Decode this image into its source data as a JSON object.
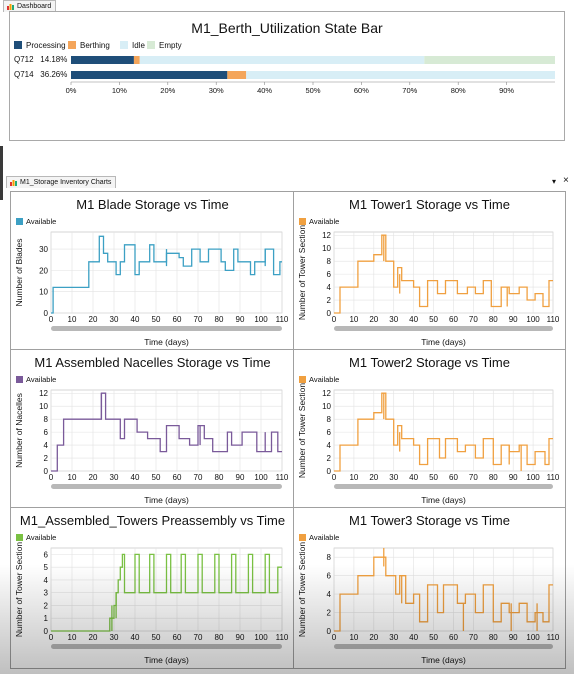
{
  "dashboard_tab": {
    "label": "Dashboard"
  },
  "storage_tab": {
    "label": "M1_Storage Inventory Charts"
  },
  "window_controls": {
    "dropdown": "▾",
    "close": "×"
  },
  "state_bar": {
    "title": "M1_Berth_Utilization State Bar",
    "legend": [
      {
        "label": "Processing",
        "color": "#1f4e79"
      },
      {
        "label": "Berthing",
        "color": "#f4a55a"
      },
      {
        "label": "Idle",
        "color": "#d8eef6"
      },
      {
        "label": "Empty",
        "color": "#d7ead5"
      }
    ],
    "rows": [
      {
        "name": "Q712",
        "pct": "14.18%",
        "processing": 13,
        "berthing": 1.2,
        "idle": 58.8,
        "empty": 27
      },
      {
        "name": "Q714",
        "pct": "36.26%",
        "processing": 32.3,
        "berthing": 3.9,
        "idle": 63.8,
        "empty": 0
      }
    ],
    "axis_ticks": [
      "0%",
      "10%",
      "20%",
      "30%",
      "40%",
      "50%",
      "60%",
      "70%",
      "80%",
      "90%"
    ]
  },
  "chart_data": [
    {
      "type": "line",
      "title": "M1 Blade Storage vs Time",
      "legend": "Available",
      "color": "#3ca0c4",
      "xlabel": "Time (days)",
      "ylabel": "Number of Blades",
      "xlim": [
        0,
        110
      ],
      "ylim": [
        0,
        38
      ],
      "yticks": [
        0,
        10,
        20,
        30
      ],
      "xticks": [
        0,
        10,
        20,
        30,
        40,
        50,
        60,
        70,
        80,
        90,
        100,
        110
      ],
      "x": [
        0,
        1,
        1,
        18,
        18,
        23,
        23,
        25,
        25,
        27,
        27,
        31,
        31,
        33,
        33,
        35,
        35,
        40,
        40,
        42,
        42,
        47,
        47,
        49,
        49,
        55,
        55,
        61,
        61,
        63,
        63,
        67,
        67,
        71,
        71,
        75,
        75,
        81,
        81,
        83,
        83,
        87,
        87,
        89,
        89,
        95,
        95,
        97,
        97,
        102,
        102,
        106,
        106,
        109,
        109,
        110
      ],
      "y": [
        0,
        0,
        12,
        12,
        24,
        24,
        36,
        36,
        28,
        28,
        24,
        24,
        18,
        18,
        24,
        24,
        32,
        32,
        18,
        18,
        24,
        24,
        32,
        32,
        24,
        24,
        28,
        28,
        26,
        26,
        22,
        22,
        30,
        30,
        24,
        24,
        30,
        30,
        24,
        24,
        20,
        20,
        30,
        30,
        24,
        24,
        18,
        18,
        24,
        24,
        30,
        30,
        18,
        18,
        24,
        24
      ],
      "spikes": [
        [
          55,
          22,
          30
        ],
        [
          102,
          22,
          30
        ]
      ]
    },
    {
      "type": "line",
      "title": "M1 Tower1 Storage vs Time",
      "legend": "Available",
      "color": "#f0a040",
      "xlabel": "Time (days)",
      "ylabel": "Number of Tower Section",
      "xlim": [
        0,
        110
      ],
      "ylim": [
        0,
        12.5
      ],
      "yticks": [
        0,
        2,
        4,
        6,
        8,
        10,
        12
      ],
      "xticks": [
        0,
        10,
        20,
        30,
        40,
        50,
        60,
        70,
        80,
        90,
        100,
        110
      ],
      "x": [
        0,
        3,
        3,
        12,
        12,
        20,
        20,
        24,
        24,
        26,
        26,
        30,
        30,
        32,
        32,
        34,
        34,
        40,
        40,
        43,
        43,
        47,
        47,
        52,
        52,
        56,
        56,
        62,
        62,
        67,
        67,
        71,
        71,
        75,
        75,
        79,
        79,
        84,
        84,
        88,
        88,
        93,
        93,
        97,
        97,
        101,
        101,
        105,
        105,
        108,
        108,
        110
      ],
      "y": [
        0,
        0,
        4,
        4,
        8,
        8,
        9,
        9,
        12,
        12,
        8,
        8,
        4,
        4,
        7,
        7,
        5,
        5,
        4,
        4,
        1,
        1,
        5,
        5,
        3,
        3,
        5,
        5,
        3,
        3,
        4,
        4,
        3,
        3,
        5,
        5,
        1,
        1,
        4,
        4,
        3,
        3,
        4,
        4,
        2,
        2,
        3,
        3,
        1,
        1,
        5,
        5
      ],
      "spikes": [
        [
          25,
          8,
          12
        ],
        [
          33,
          3,
          6
        ],
        [
          87,
          1,
          4
        ]
      ]
    },
    {
      "type": "line",
      "title": "M1 Assembled Nacelles Storage vs Time",
      "legend": "Available",
      "color": "#7a5a9a",
      "xlabel": "Time (days)",
      "ylabel": "Number of Nacelles",
      "xlim": [
        0,
        110
      ],
      "ylim": [
        0,
        12.5
      ],
      "yticks": [
        0,
        2,
        4,
        6,
        8,
        10,
        12
      ],
      "xticks": [
        0,
        10,
        20,
        30,
        40,
        50,
        60,
        70,
        80,
        90,
        100,
        110
      ],
      "x": [
        0,
        3,
        3,
        6,
        6,
        18,
        18,
        24,
        24,
        26,
        26,
        33,
        33,
        35,
        35,
        41,
        41,
        46,
        46,
        52,
        52,
        55,
        55,
        61,
        61,
        66,
        66,
        70,
        70,
        73,
        73,
        77,
        77,
        84,
        84,
        86,
        86,
        91,
        91,
        98,
        98,
        105,
        105,
        108,
        108,
        110
      ],
      "y": [
        0,
        0,
        4,
        4,
        8,
        8,
        8,
        8,
        12,
        12,
        8,
        8,
        5,
        5,
        8,
        8,
        6,
        6,
        5,
        5,
        3,
        3,
        7,
        7,
        5,
        5,
        4,
        4,
        7,
        7,
        5,
        5,
        3,
        3,
        6,
        6,
        4,
        4,
        6,
        6,
        3,
        3,
        6,
        6,
        3,
        3
      ],
      "spikes": [
        [
          24,
          8,
          12
        ],
        [
          71,
          4,
          7
        ],
        [
          102,
          3,
          6
        ]
      ]
    },
    {
      "type": "line",
      "title": "M1 Tower2 Storage vs Time",
      "legend": "Available",
      "color": "#f0a040",
      "xlabel": "Time (days)",
      "ylabel": "Number of Tower Section",
      "xlim": [
        0,
        110
      ],
      "ylim": [
        0,
        12.5
      ],
      "yticks": [
        0,
        2,
        4,
        6,
        8,
        10,
        12
      ],
      "xticks": [
        0,
        10,
        20,
        30,
        40,
        50,
        60,
        70,
        80,
        90,
        100,
        110
      ],
      "x": [
        0,
        3,
        3,
        12,
        12,
        20,
        20,
        24,
        24,
        26,
        26,
        30,
        30,
        32,
        32,
        34,
        34,
        40,
        40,
        43,
        43,
        47,
        47,
        53,
        53,
        56,
        56,
        62,
        62,
        66,
        66,
        71,
        71,
        75,
        75,
        80,
        80,
        84,
        84,
        88,
        88,
        93,
        93,
        97,
        97,
        101,
        101,
        106,
        106,
        108,
        108,
        110
      ],
      "y": [
        0,
        0,
        4,
        4,
        8,
        8,
        9,
        9,
        12,
        12,
        8,
        8,
        4,
        4,
        7,
        7,
        5,
        5,
        4,
        4,
        1,
        1,
        5,
        5,
        2,
        2,
        5,
        5,
        3,
        3,
        4,
        4,
        2,
        2,
        5,
        5,
        1,
        1,
        4,
        4,
        3,
        3,
        4,
        4,
        1,
        1,
        3,
        3,
        1,
        1,
        5,
        5
      ],
      "spikes": [
        [
          25,
          8,
          12
        ],
        [
          33,
          3,
          6
        ],
        [
          88,
          1,
          4
        ],
        [
          94,
          0,
          4
        ]
      ]
    },
    {
      "type": "line",
      "title": "M1_Assembled_Towers Preassembly vs Time",
      "legend": "Available",
      "color": "#7ac143",
      "xlabel": "Time (days)",
      "ylabel": "Number of Tower Section",
      "xlim": [
        0,
        110
      ],
      "ylim": [
        0,
        6.5
      ],
      "yticks": [
        0,
        1,
        2,
        3,
        4,
        5,
        6
      ],
      "xticks": [
        0,
        10,
        20,
        30,
        40,
        50,
        60,
        70,
        80,
        90,
        100,
        110
      ],
      "x": [
        0,
        28,
        28,
        30,
        30,
        31,
        31,
        32,
        32,
        33,
        33,
        34,
        34,
        35,
        35,
        40,
        40,
        42,
        42,
        47,
        47,
        49,
        49,
        55,
        55,
        57,
        57,
        62,
        62,
        64,
        64,
        70,
        70,
        72,
        72,
        78,
        78,
        80,
        80,
        86,
        86,
        88,
        88,
        94,
        94,
        96,
        96,
        102,
        102,
        104,
        104,
        108,
        108,
        110
      ],
      "y": [
        0,
        0,
        1,
        1,
        2,
        2,
        3,
        3,
        4,
        4,
        5,
        5,
        6,
        6,
        3,
        3,
        6,
        6,
        3,
        3,
        6,
        6,
        3,
        3,
        6,
        6,
        3,
        3,
        6,
        6,
        3,
        3,
        6,
        6,
        3,
        3,
        6,
        6,
        3,
        3,
        6,
        6,
        3,
        3,
        6,
        6,
        3,
        3,
        6,
        6,
        3,
        3,
        5,
        5
      ],
      "spikes": [
        [
          29,
          0,
          2
        ],
        [
          31,
          1,
          3
        ]
      ]
    },
    {
      "type": "line",
      "title": "M1 Tower3 Storage vs Time",
      "legend": "Available",
      "color": "#f0a040",
      "xlabel": "Time (days)",
      "ylabel": "Number of Tower Section",
      "xlim": [
        0,
        110
      ],
      "ylim": [
        0,
        9
      ],
      "yticks": [
        0,
        2,
        4,
        6,
        8
      ],
      "xticks": [
        0,
        10,
        20,
        30,
        40,
        50,
        60,
        70,
        80,
        90,
        100,
        110
      ],
      "x": [
        0,
        3,
        3,
        12,
        12,
        20,
        20,
        24,
        24,
        26,
        26,
        31,
        31,
        33,
        33,
        36,
        36,
        40,
        40,
        43,
        43,
        47,
        47,
        52,
        52,
        55,
        55,
        62,
        62,
        66,
        66,
        71,
        71,
        75,
        75,
        80,
        80,
        84,
        84,
        88,
        88,
        93,
        93,
        97,
        97,
        101,
        101,
        105,
        105,
        108,
        108,
        110
      ],
      "y": [
        0,
        0,
        4,
        4,
        6,
        6,
        8,
        8,
        8,
        8,
        6,
        6,
        4,
        4,
        6,
        6,
        3,
        3,
        4,
        4,
        1,
        1,
        5,
        5,
        2,
        2,
        5,
        5,
        3,
        3,
        4,
        4,
        2,
        2,
        5,
        5,
        1,
        1,
        3,
        3,
        2,
        2,
        3,
        3,
        1,
        1,
        2,
        2,
        1,
        1,
        5,
        5
      ],
      "spikes": [
        [
          25,
          7,
          9
        ],
        [
          34,
          3,
          6
        ],
        [
          65,
          0,
          3
        ],
        [
          89,
          0,
          3
        ],
        [
          102,
          0,
          3
        ]
      ]
    }
  ]
}
